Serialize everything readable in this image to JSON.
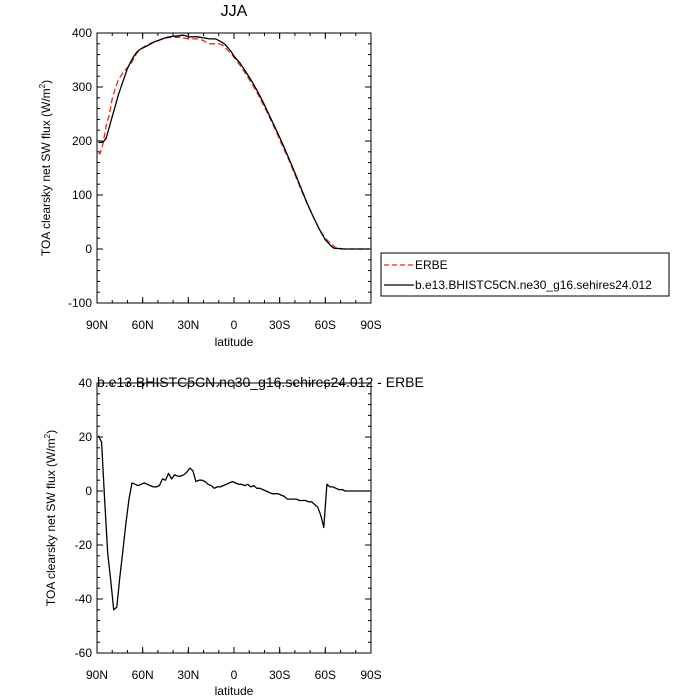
{
  "chart_data": [
    {
      "type": "line",
      "title": "JJA",
      "xlabel": "latitude",
      "ylabel": "TOA clearsky net SW flux (W/m",
      "ylabel_sup": "2",
      "ylabel_close": ")",
      "xlim": [
        90,
        -90
      ],
      "ylim": [
        -100,
        400
      ],
      "xticks": [
        {
          "v": 90,
          "label": "90N"
        },
        {
          "v": 60,
          "label": "60N"
        },
        {
          "v": 30,
          "label": "30N"
        },
        {
          "v": 0,
          "label": "0"
        },
        {
          "v": -30,
          "label": "30S"
        },
        {
          "v": -60,
          "label": "60S"
        },
        {
          "v": -90,
          "label": "90S"
        }
      ],
      "yticks": [
        {
          "v": 400,
          "label": "400"
        },
        {
          "v": 300,
          "label": "300"
        },
        {
          "v": 200,
          "label": "200"
        },
        {
          "v": 100,
          "label": "100"
        },
        {
          "v": 0,
          "label": "0"
        },
        {
          "v": -100,
          "label": "-100"
        }
      ],
      "legend_position": "right",
      "series": [
        {
          "name": "ERBE",
          "color": "#e8281e",
          "dash": "dashed",
          "x": [
            89,
            88,
            86,
            84,
            82,
            80,
            78,
            76,
            74,
            72,
            70,
            68,
            66,
            64,
            62,
            60,
            58,
            56,
            54,
            52,
            50,
            48,
            46,
            44,
            42,
            40,
            38,
            36,
            34,
            32,
            30,
            28,
            26,
            24,
            22,
            20,
            18,
            16,
            14,
            12,
            10,
            8,
            6,
            4,
            2,
            0,
            -4,
            -8,
            -12,
            -16,
            -20,
            -24,
            -28,
            -32,
            -36,
            -40,
            -44,
            -48,
            -52,
            -56,
            -60,
            -62,
            -64,
            -66,
            -68,
            -70,
            -72,
            -74,
            -76,
            -78,
            -80,
            -84,
            -89
          ],
          "y": [
            178,
            176,
            196,
            228,
            248,
            278,
            298,
            313,
            322,
            330,
            336,
            342,
            352,
            362,
            369,
            373,
            376,
            379,
            382,
            384,
            386,
            388,
            390,
            391,
            392,
            393,
            392,
            392,
            391,
            390,
            389,
            389,
            389,
            389,
            388,
            386,
            382,
            380,
            380,
            380,
            380,
            378,
            374,
            368,
            362,
            355,
            340,
            323,
            305,
            285,
            263,
            240,
            216,
            190,
            165,
            138,
            110,
            84,
            60,
            37,
            20,
            14,
            10,
            4,
            1,
            0,
            0,
            0,
            0,
            0,
            0,
            0,
            0
          ]
        },
        {
          "name": "b.e13.BHISTC5CN.ne30_g16.sehires24.012",
          "color": "#000000",
          "dash": "solid",
          "x": [
            89,
            88,
            86,
            84,
            82,
            80,
            78,
            76,
            74,
            72,
            70,
            68,
            66,
            64,
            62,
            60,
            58,
            56,
            54,
            52,
            50,
            48,
            46,
            44,
            42,
            40,
            38,
            36,
            34,
            32,
            30,
            28,
            26,
            24,
            22,
            20,
            18,
            16,
            14,
            12,
            10,
            8,
            6,
            4,
            2,
            0,
            -4,
            -8,
            -12,
            -16,
            -20,
            -24,
            -28,
            -32,
            -36,
            -40,
            -44,
            -48,
            -52,
            -56,
            -60,
            -62,
            -64,
            -66,
            -68,
            -70,
            -72,
            -74,
            -76,
            -78,
            -80,
            -84,
            -89
          ],
          "y": [
            198,
            197,
            198,
            205,
            225,
            245,
            265,
            285,
            302,
            318,
            334,
            346,
            356,
            364,
            369,
            372,
            375,
            378,
            381,
            384,
            386,
            388,
            390,
            392,
            393,
            394,
            394,
            395,
            396,
            395,
            393,
            393,
            393,
            393,
            392,
            391,
            390,
            389,
            389,
            389,
            386,
            383,
            379,
            373,
            366,
            357,
            344,
            327,
            309,
            289,
            267,
            243,
            219,
            194,
            168,
            141,
            113,
            85,
            60,
            37,
            17,
            11,
            5,
            1,
            1,
            1,
            0,
            0,
            0,
            0,
            0,
            0,
            0
          ]
        }
      ]
    },
    {
      "type": "line",
      "title": "b.e13.BHISTC5CN.ne30_g16.sehires24.012 - ERBE",
      "xlabel": "latitude",
      "ylabel": "TOA clearsky net SW flux (W/m",
      "ylabel_sup": "2",
      "ylabel_close": ")",
      "xlim": [
        90,
        -90
      ],
      "ylim": [
        -60,
        40
      ],
      "xticks": [
        {
          "v": 90,
          "label": "90N"
        },
        {
          "v": 60,
          "label": "60N"
        },
        {
          "v": 30,
          "label": "30N"
        },
        {
          "v": 0,
          "label": "0"
        },
        {
          "v": -30,
          "label": "30S"
        },
        {
          "v": -60,
          "label": "60S"
        },
        {
          "v": -90,
          "label": "90S"
        }
      ],
      "yticks": [
        {
          "v": 40,
          "label": "40"
        },
        {
          "v": 20,
          "label": "20"
        },
        {
          "v": 0,
          "label": "0"
        },
        {
          "v": -20,
          "label": "-20"
        },
        {
          "v": -40,
          "label": "-40"
        },
        {
          "v": -60,
          "label": "-60"
        }
      ],
      "series": [
        {
          "name": "",
          "color": "#000000",
          "dash": "solid",
          "x": [
            89,
            87,
            85,
            83,
            81,
            79,
            77,
            75,
            73,
            71,
            69,
            67,
            65,
            63,
            61,
            59,
            57,
            55,
            53,
            51,
            49,
            47,
            45,
            43,
            41,
            39,
            37,
            35,
            33,
            31,
            29,
            27,
            25,
            23,
            21,
            19,
            17,
            15,
            13,
            11,
            9,
            7,
            5,
            3,
            1,
            -1,
            -3,
            -5,
            -7,
            -9,
            -11,
            -13,
            -15,
            -17,
            -19,
            -21,
            -23,
            -25,
            -27,
            -29,
            -31,
            -33,
            -35,
            -37,
            -39,
            -41,
            -43,
            -45,
            -47,
            -49,
            -51,
            -53,
            -55,
            -57,
            -59,
            -61,
            -63,
            -65,
            -67,
            -69,
            -71,
            -73,
            -75,
            -77,
            -79,
            -81,
            -83,
            -85,
            -87,
            -89
          ],
          "y": [
            20.5,
            18,
            -3,
            -23,
            -33,
            -44,
            -43,
            -32,
            -22,
            -12,
            -3,
            3,
            2.5,
            2,
            2.5,
            3,
            2.5,
            2,
            1.5,
            1.5,
            2,
            4.5,
            4,
            6.5,
            4.5,
            6,
            5.5,
            5.5,
            6,
            7,
            8.5,
            7.5,
            3.5,
            4,
            4,
            3.5,
            2.5,
            2,
            1,
            1.5,
            1.5,
            2,
            2.5,
            3,
            3.5,
            3,
            2.5,
            2.5,
            2,
            2.5,
            1.5,
            2,
            1,
            1,
            0.5,
            0,
            -0.5,
            -1,
            -1,
            -1,
            -1.5,
            -2,
            -3,
            -3,
            -3,
            -3,
            -3.5,
            -3.5,
            -3.5,
            -4,
            -4,
            -5,
            -6,
            -9,
            -13.5,
            2.5,
            1.5,
            1.5,
            1,
            0.5,
            0.5,
            0,
            0,
            0,
            0,
            0,
            0,
            0,
            0,
            0
          ]
        }
      ]
    }
  ]
}
